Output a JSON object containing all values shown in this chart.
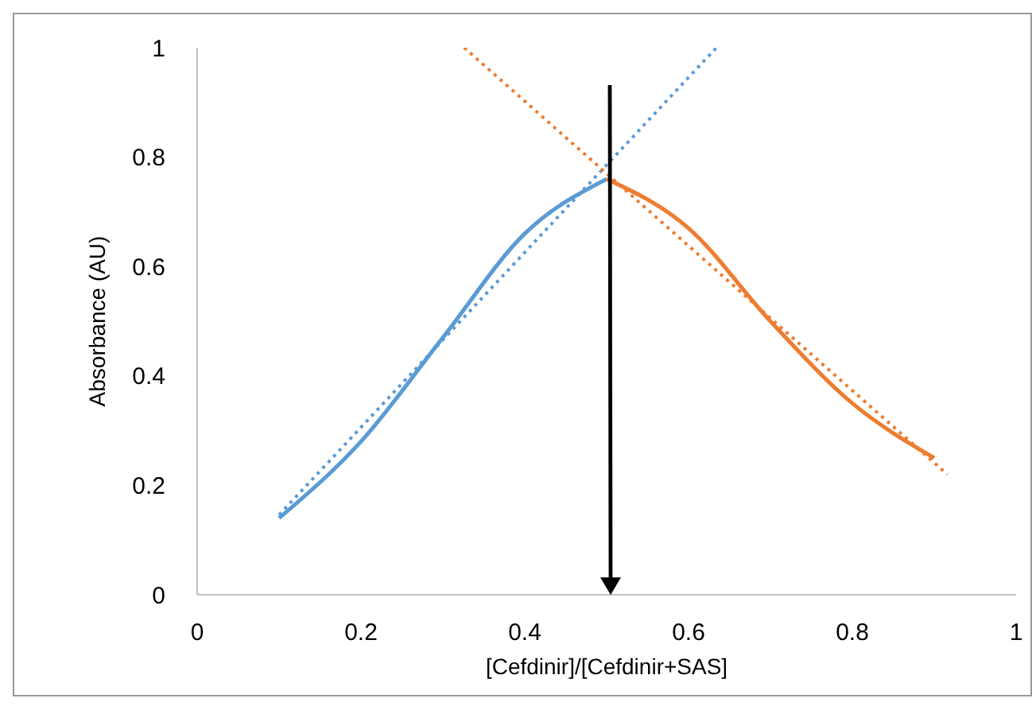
{
  "chart_data": {
    "type": "line",
    "xlabel": "[Cefdinir]/[Cefdinir+SAS]",
    "ylabel": "Absorbance (AU)",
    "xlim": [
      0,
      1
    ],
    "xticks": [
      0,
      0.2,
      0.4,
      0.6,
      0.8,
      1
    ],
    "ylim": [
      0,
      1
    ],
    "yticks": [
      0,
      0.2,
      0.4,
      0.6,
      0.8,
      1
    ],
    "grid": false,
    "legend": false,
    "marker": "none",
    "line_style": "solid",
    "series": [
      {
        "color": "#5b9bd5",
        "x": [
          0.1,
          0.2,
          0.3,
          0.4,
          0.5
        ],
        "values": [
          0.14,
          0.28,
          0.47,
          0.66,
          0.76
        ]
      },
      {
        "color": "#ed7d31",
        "x": [
          0.5,
          0.6,
          0.7,
          0.8,
          0.9
        ],
        "values": [
          0.76,
          0.67,
          0.5,
          0.35,
          0.25
        ]
      },
      {
        "color": "#5b9bd5",
        "line_style": "dotted",
        "x": [
          0.1,
          0.634
        ],
        "values": [
          0.146,
          1
        ]
      },
      {
        "color": "#ed7d31",
        "line_style": "dotted",
        "x": [
          0.326,
          0.916
        ],
        "values": [
          1,
          0.22
        ]
      }
    ]
  }
}
